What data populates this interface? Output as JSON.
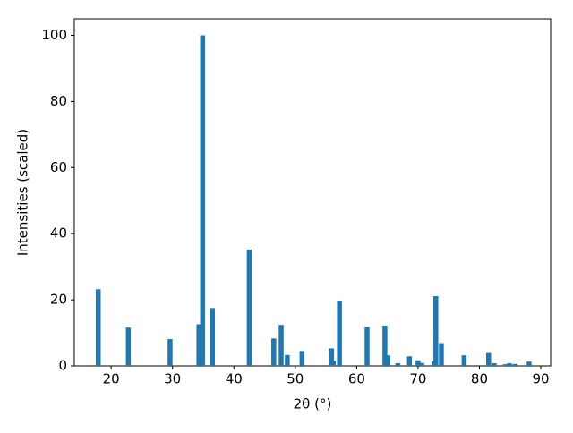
{
  "chart_data": {
    "type": "bar",
    "xlabel": "2θ (°)",
    "ylabel": "Intensities (scaled)",
    "x": [
      17.9,
      22.8,
      29.6,
      34.3,
      34.9,
      36.5,
      42.5,
      46.5,
      47.7,
      48.7,
      51.1,
      55.9,
      56.2,
      57.2,
      61.7,
      64.6,
      65.1,
      66.7,
      68.6,
      70.0,
      70.6,
      72.6,
      72.9,
      73.8,
      77.5,
      81.5,
      82.4,
      84.2,
      84.9,
      85.8,
      88.1
    ],
    "values": [
      23.2,
      11.6,
      8.1,
      12.6,
      100,
      17.5,
      35.2,
      8.3,
      12.4,
      3.3,
      4.5,
      5.3,
      1.5,
      19.7,
      11.8,
      12.2,
      3.2,
      0.8,
      2.9,
      1.7,
      0.9,
      1.4,
      21.1,
      6.9,
      3.2,
      3.9,
      0.8,
      0.5,
      0.8,
      0.6,
      1.3
    ],
    "bar_width": 0.8,
    "color": "#1f77b4",
    "xlim": [
      14,
      91.6
    ],
    "xticks": [
      20,
      30,
      40,
      50,
      60,
      70,
      80,
      90
    ],
    "ylim": [
      0,
      105
    ],
    "yticks": [
      0,
      20,
      40,
      60,
      80,
      100
    ]
  }
}
